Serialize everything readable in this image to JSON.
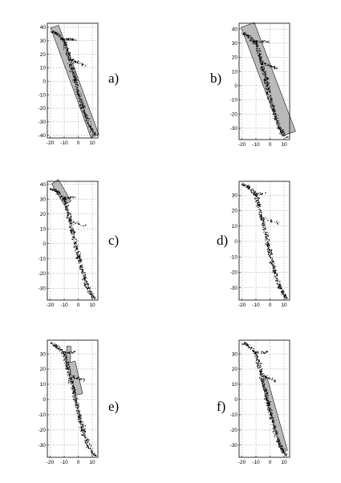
{
  "chart_data": [
    {
      "type": "scatter",
      "panel_label": "a)",
      "xlim": [
        -22,
        14
      ],
      "ylim": [
        -42,
        43
      ],
      "xticks": [
        -20,
        -10,
        0,
        10
      ],
      "yticks": [
        -40,
        -30,
        -20,
        -10,
        0,
        10,
        20,
        30,
        40
      ],
      "grid": true,
      "trace": [
        [
          -19,
          37
        ],
        [
          -15,
          35
        ],
        [
          -10,
          30
        ],
        [
          -7,
          20
        ],
        [
          -5,
          12
        ],
        [
          -3,
          5
        ],
        [
          -2,
          0
        ],
        [
          0,
          -8
        ],
        [
          2,
          -15
        ],
        [
          4,
          -22
        ],
        [
          7,
          -30
        ],
        [
          10,
          -37
        ],
        [
          12,
          -40
        ]
      ],
      "branches": [
        [
          [
            -12,
            31
          ],
          [
            -2,
            31
          ]
        ],
        [
          [
            -6,
            16
          ],
          [
            5,
            12
          ]
        ]
      ],
      "shaded_regions": [
        {
          "center": [
            -2.5,
            0
          ],
          "length": 86,
          "width": 6,
          "angle_deg": -19.5
        }
      ]
    },
    {
      "type": "scatter",
      "panel_label": "b)",
      "xlim": [
        -22,
        14
      ],
      "ylim": [
        -38,
        44
      ],
      "xticks": [
        -20,
        -10,
        0,
        10
      ],
      "yticks": [
        -30,
        -20,
        -10,
        0,
        10,
        20,
        30,
        40
      ],
      "grid": true,
      "trace": [
        [
          -19,
          37
        ],
        [
          -15,
          35
        ],
        [
          -10,
          30
        ],
        [
          -7,
          20
        ],
        [
          -5,
          12
        ],
        [
          -3,
          5
        ],
        [
          -2,
          0
        ],
        [
          0,
          -8
        ],
        [
          2,
          -15
        ],
        [
          4,
          -22
        ],
        [
          7,
          -30
        ],
        [
          10,
          -35
        ],
        [
          12,
          -37
        ]
      ],
      "branches": [
        [
          [
            -12,
            31
          ],
          [
            -2,
            31
          ]
        ],
        [
          [
            -6,
            16
          ],
          [
            5,
            12
          ]
        ]
      ],
      "shaded_regions": [
        {
          "center": [
            -1.2,
            4.5
          ],
          "length": 82,
          "width": 10,
          "angle_deg": -21
        }
      ]
    },
    {
      "type": "scatter",
      "panel_label": "c)",
      "xlim": [
        -22,
        14
      ],
      "ylim": [
        -38,
        42
      ],
      "xticks": [
        -20,
        -10,
        0,
        10
      ],
      "yticks": [
        -30,
        -20,
        -10,
        0,
        10,
        20,
        30,
        40
      ],
      "grid": true,
      "trace": [
        [
          -19,
          37
        ],
        [
          -15,
          35
        ],
        [
          -10,
          30
        ],
        [
          -7,
          20
        ],
        [
          -5,
          12
        ],
        [
          -3,
          5
        ],
        [
          -2,
          0
        ],
        [
          0,
          -8
        ],
        [
          2,
          -15
        ],
        [
          4,
          -22
        ],
        [
          7,
          -30
        ],
        [
          10,
          -35
        ],
        [
          12,
          -37
        ]
      ],
      "branches": [
        [
          [
            -12,
            31
          ],
          [
            -2,
            31
          ]
        ],
        [
          [
            -6,
            16
          ],
          [
            5,
            12
          ]
        ]
      ],
      "shaded_regions": [
        {
          "center": [
            -12,
            34.5
          ],
          "length": 17,
          "width": 5.5,
          "angle_deg": -32
        }
      ]
    },
    {
      "type": "scatter",
      "panel_label": "d)",
      "xlim": [
        -22,
        14
      ],
      "ylim": [
        -38,
        39
      ],
      "xticks": [
        -20,
        -10,
        0,
        10
      ],
      "yticks": [
        -30,
        -20,
        -10,
        0,
        10,
        20,
        30
      ],
      "grid": true,
      "trace": [
        [
          -19,
          37
        ],
        [
          -15,
          35
        ],
        [
          -10,
          30
        ],
        [
          -7,
          20
        ],
        [
          -5,
          12
        ],
        [
          -3,
          5
        ],
        [
          -2,
          0
        ],
        [
          0,
          -8
        ],
        [
          2,
          -15
        ],
        [
          4,
          -22
        ],
        [
          7,
          -30
        ],
        [
          10,
          -35
        ],
        [
          12,
          -37
        ]
      ],
      "branches": [
        [
          [
            -12,
            31
          ],
          [
            -2,
            31
          ]
        ],
        [
          [
            -6,
            16
          ],
          [
            5,
            12
          ]
        ]
      ],
      "shaded_regions": []
    },
    {
      "type": "scatter",
      "panel_label": "e)",
      "xlim": [
        -22,
        14
      ],
      "ylim": [
        -38,
        39
      ],
      "xticks": [
        -20,
        -10,
        0,
        10
      ],
      "yticks": [
        -30,
        -20,
        -10,
        0,
        10,
        20,
        30
      ],
      "grid": true,
      "trace": [
        [
          -19,
          37
        ],
        [
          -15,
          35
        ],
        [
          -10,
          30
        ],
        [
          -7,
          20
        ],
        [
          -5,
          12
        ],
        [
          -3,
          5
        ],
        [
          -2,
          0
        ],
        [
          0,
          -8
        ],
        [
          2,
          -15
        ],
        [
          4,
          -22
        ],
        [
          7,
          -30
        ],
        [
          10,
          -35
        ],
        [
          12,
          -37
        ]
      ],
      "branches": [
        [
          [
            -12,
            31
          ],
          [
            -2,
            31
          ]
        ],
        [
          [
            -6,
            16
          ],
          [
            5,
            12
          ]
        ]
      ],
      "shaded_regions": [
        {
          "center": [
            -7,
            28
          ],
          "length": 14,
          "width": 3,
          "angle_deg": 3
        },
        {
          "center": [
            -2,
            14
          ],
          "length": 22,
          "width": 5,
          "angle_deg": -14
        }
      ]
    },
    {
      "type": "scatter",
      "panel_label": "f)",
      "xlim": [
        -22,
        14
      ],
      "ylim": [
        -38,
        39
      ],
      "xticks": [
        -20,
        -10,
        0,
        10
      ],
      "yticks": [
        -30,
        -20,
        -10,
        0,
        10,
        20,
        30
      ],
      "grid": true,
      "trace": [
        [
          -19,
          37
        ],
        [
          -15,
          35
        ],
        [
          -10,
          30
        ],
        [
          -7,
          20
        ],
        [
          -5,
          12
        ],
        [
          -3,
          5
        ],
        [
          -2,
          0
        ],
        [
          0,
          -8
        ],
        [
          2,
          -15
        ],
        [
          4,
          -22
        ],
        [
          7,
          -30
        ],
        [
          10,
          -35
        ],
        [
          12,
          -37
        ]
      ],
      "branches": [
        [
          [
            -12,
            31
          ],
          [
            -2,
            31
          ]
        ],
        [
          [
            -6,
            16
          ],
          [
            5,
            12
          ]
        ]
      ],
      "shaded_regions": [
        {
          "center": [
            3,
            -10
          ],
          "length": 50,
          "width": 4.5,
          "angle_deg": -17
        }
      ]
    }
  ]
}
